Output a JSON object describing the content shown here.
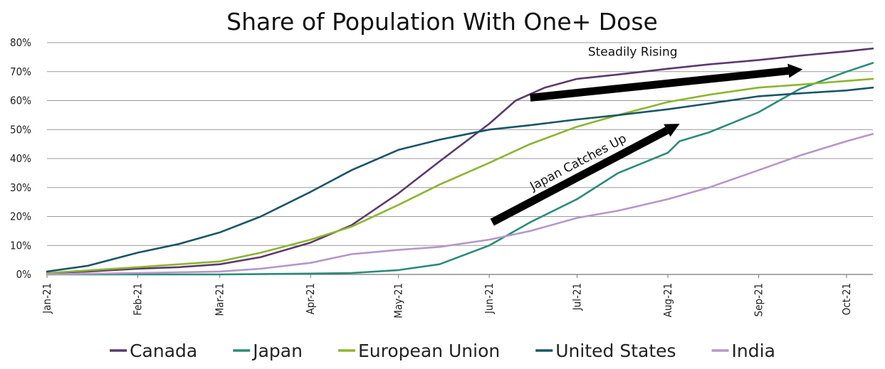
{
  "chart_data": {
    "type": "line",
    "title": "Share of Population With One+ Dose",
    "xlabel": "",
    "ylabel": "",
    "x_tick_labels": [
      "Jan-21",
      "Feb-21",
      "Mar-21",
      "Apr-21",
      "May-21",
      "Jun-21",
      "Jul-21",
      "Aug-21",
      "Sep-21",
      "Oct-21"
    ],
    "x_range": [
      "2021-01-01",
      "2021-10-10"
    ],
    "y_ticks": [
      0,
      10,
      20,
      30,
      40,
      50,
      60,
      70,
      80
    ],
    "y_tick_format": "{v}%",
    "ylim": [
      0,
      80
    ],
    "grid": "horizontal",
    "legend_position": "bottom",
    "series": [
      {
        "name": "Canada",
        "color": "#5b3a6e",
        "points": [
          [
            "2021-01-01",
            0.5
          ],
          [
            "2021-01-15",
            1.0
          ],
          [
            "2021-02-01",
            2.0
          ],
          [
            "2021-02-15",
            2.5
          ],
          [
            "2021-03-01",
            3.5
          ],
          [
            "2021-03-15",
            6.0
          ],
          [
            "2021-04-01",
            11.0
          ],
          [
            "2021-04-15",
            17.0
          ],
          [
            "2021-05-01",
            28.0
          ],
          [
            "2021-05-15",
            39.0
          ],
          [
            "2021-06-01",
            52.0
          ],
          [
            "2021-06-10",
            60.0
          ],
          [
            "2021-06-20",
            64.5
          ],
          [
            "2021-07-01",
            67.5
          ],
          [
            "2021-07-15",
            69.0
          ],
          [
            "2021-08-01",
            71.0
          ],
          [
            "2021-08-15",
            72.5
          ],
          [
            "2021-09-01",
            74.0
          ],
          [
            "2021-09-15",
            75.5
          ],
          [
            "2021-10-01",
            77.0
          ],
          [
            "2021-10-10",
            78.0
          ]
        ]
      },
      {
        "name": "Japan",
        "color": "#2a8c78",
        "points": [
          [
            "2021-01-01",
            0.0
          ],
          [
            "2021-02-15",
            0.0
          ],
          [
            "2021-03-01",
            0.0
          ],
          [
            "2021-04-01",
            0.3
          ],
          [
            "2021-04-15",
            0.5
          ],
          [
            "2021-05-01",
            1.5
          ],
          [
            "2021-05-15",
            3.5
          ],
          [
            "2021-06-01",
            10.0
          ],
          [
            "2021-06-15",
            18.0
          ],
          [
            "2021-07-01",
            26.0
          ],
          [
            "2021-07-15",
            35.0
          ],
          [
            "2021-08-01",
            42.0
          ],
          [
            "2021-08-05",
            46.0
          ],
          [
            "2021-08-15",
            49.0
          ],
          [
            "2021-09-01",
            56.0
          ],
          [
            "2021-09-15",
            64.0
          ],
          [
            "2021-10-01",
            70.0
          ],
          [
            "2021-10-10",
            73.0
          ]
        ]
      },
      {
        "name": "European Union",
        "color": "#8db52e",
        "points": [
          [
            "2021-01-01",
            0.5
          ],
          [
            "2021-02-01",
            2.5
          ],
          [
            "2021-03-01",
            4.5
          ],
          [
            "2021-03-15",
            7.5
          ],
          [
            "2021-04-01",
            12.0
          ],
          [
            "2021-04-15",
            16.5
          ],
          [
            "2021-05-01",
            24.0
          ],
          [
            "2021-05-15",
            31.0
          ],
          [
            "2021-06-01",
            38.5
          ],
          [
            "2021-06-15",
            45.0
          ],
          [
            "2021-07-01",
            51.0
          ],
          [
            "2021-07-15",
            55.0
          ],
          [
            "2021-08-01",
            59.5
          ],
          [
            "2021-08-15",
            62.0
          ],
          [
            "2021-09-01",
            64.5
          ],
          [
            "2021-09-15",
            65.5
          ],
          [
            "2021-10-01",
            66.8
          ],
          [
            "2021-10-10",
            67.5
          ]
        ]
      },
      {
        "name": "United States",
        "color": "#1a5567",
        "points": [
          [
            "2021-01-01",
            1.0
          ],
          [
            "2021-01-15",
            3.0
          ],
          [
            "2021-02-01",
            7.5
          ],
          [
            "2021-02-15",
            10.5
          ],
          [
            "2021-03-01",
            14.5
          ],
          [
            "2021-03-15",
            20.0
          ],
          [
            "2021-04-01",
            28.5
          ],
          [
            "2021-04-15",
            36.0
          ],
          [
            "2021-05-01",
            43.0
          ],
          [
            "2021-05-15",
            46.5
          ],
          [
            "2021-06-01",
            50.0
          ],
          [
            "2021-06-15",
            51.5
          ],
          [
            "2021-07-01",
            53.5
          ],
          [
            "2021-07-15",
            55.0
          ],
          [
            "2021-08-01",
            57.0
          ],
          [
            "2021-08-15",
            59.0
          ],
          [
            "2021-09-01",
            61.5
          ],
          [
            "2021-09-15",
            62.5
          ],
          [
            "2021-10-01",
            63.5
          ],
          [
            "2021-10-10",
            64.5
          ]
        ]
      },
      {
        "name": "India",
        "color": "#b498c9",
        "points": [
          [
            "2021-01-01",
            0.0
          ],
          [
            "2021-02-01",
            0.5
          ],
          [
            "2021-03-01",
            1.0
          ],
          [
            "2021-03-15",
            2.0
          ],
          [
            "2021-04-01",
            4.0
          ],
          [
            "2021-04-15",
            7.0
          ],
          [
            "2021-05-01",
            8.5
          ],
          [
            "2021-05-15",
            9.5
          ],
          [
            "2021-06-01",
            12.0
          ],
          [
            "2021-06-15",
            15.0
          ],
          [
            "2021-07-01",
            19.5
          ],
          [
            "2021-07-15",
            22.0
          ],
          [
            "2021-08-01",
            26.0
          ],
          [
            "2021-08-15",
            30.0
          ],
          [
            "2021-09-01",
            36.0
          ],
          [
            "2021-09-15",
            41.0
          ],
          [
            "2021-10-01",
            46.0
          ],
          [
            "2021-10-10",
            48.5
          ]
        ]
      }
    ],
    "annotations": [
      {
        "label": "Steadily Rising",
        "arrow_from": [
          "2021-06-15",
          61.0
        ],
        "arrow_to": [
          "2021-09-16",
          70.8
        ],
        "text_anchor": [
          "2021-07-20",
          75.5
        ],
        "rotate_with_arrow": false
      },
      {
        "label": "Japan Catches Up",
        "arrow_from": [
          "2021-06-02",
          18.0
        ],
        "arrow_to": [
          "2021-08-05",
          52.0
        ],
        "text_anchor": [
          "2021-07-02",
          37.5
        ],
        "rotate_with_arrow": true
      }
    ]
  }
}
